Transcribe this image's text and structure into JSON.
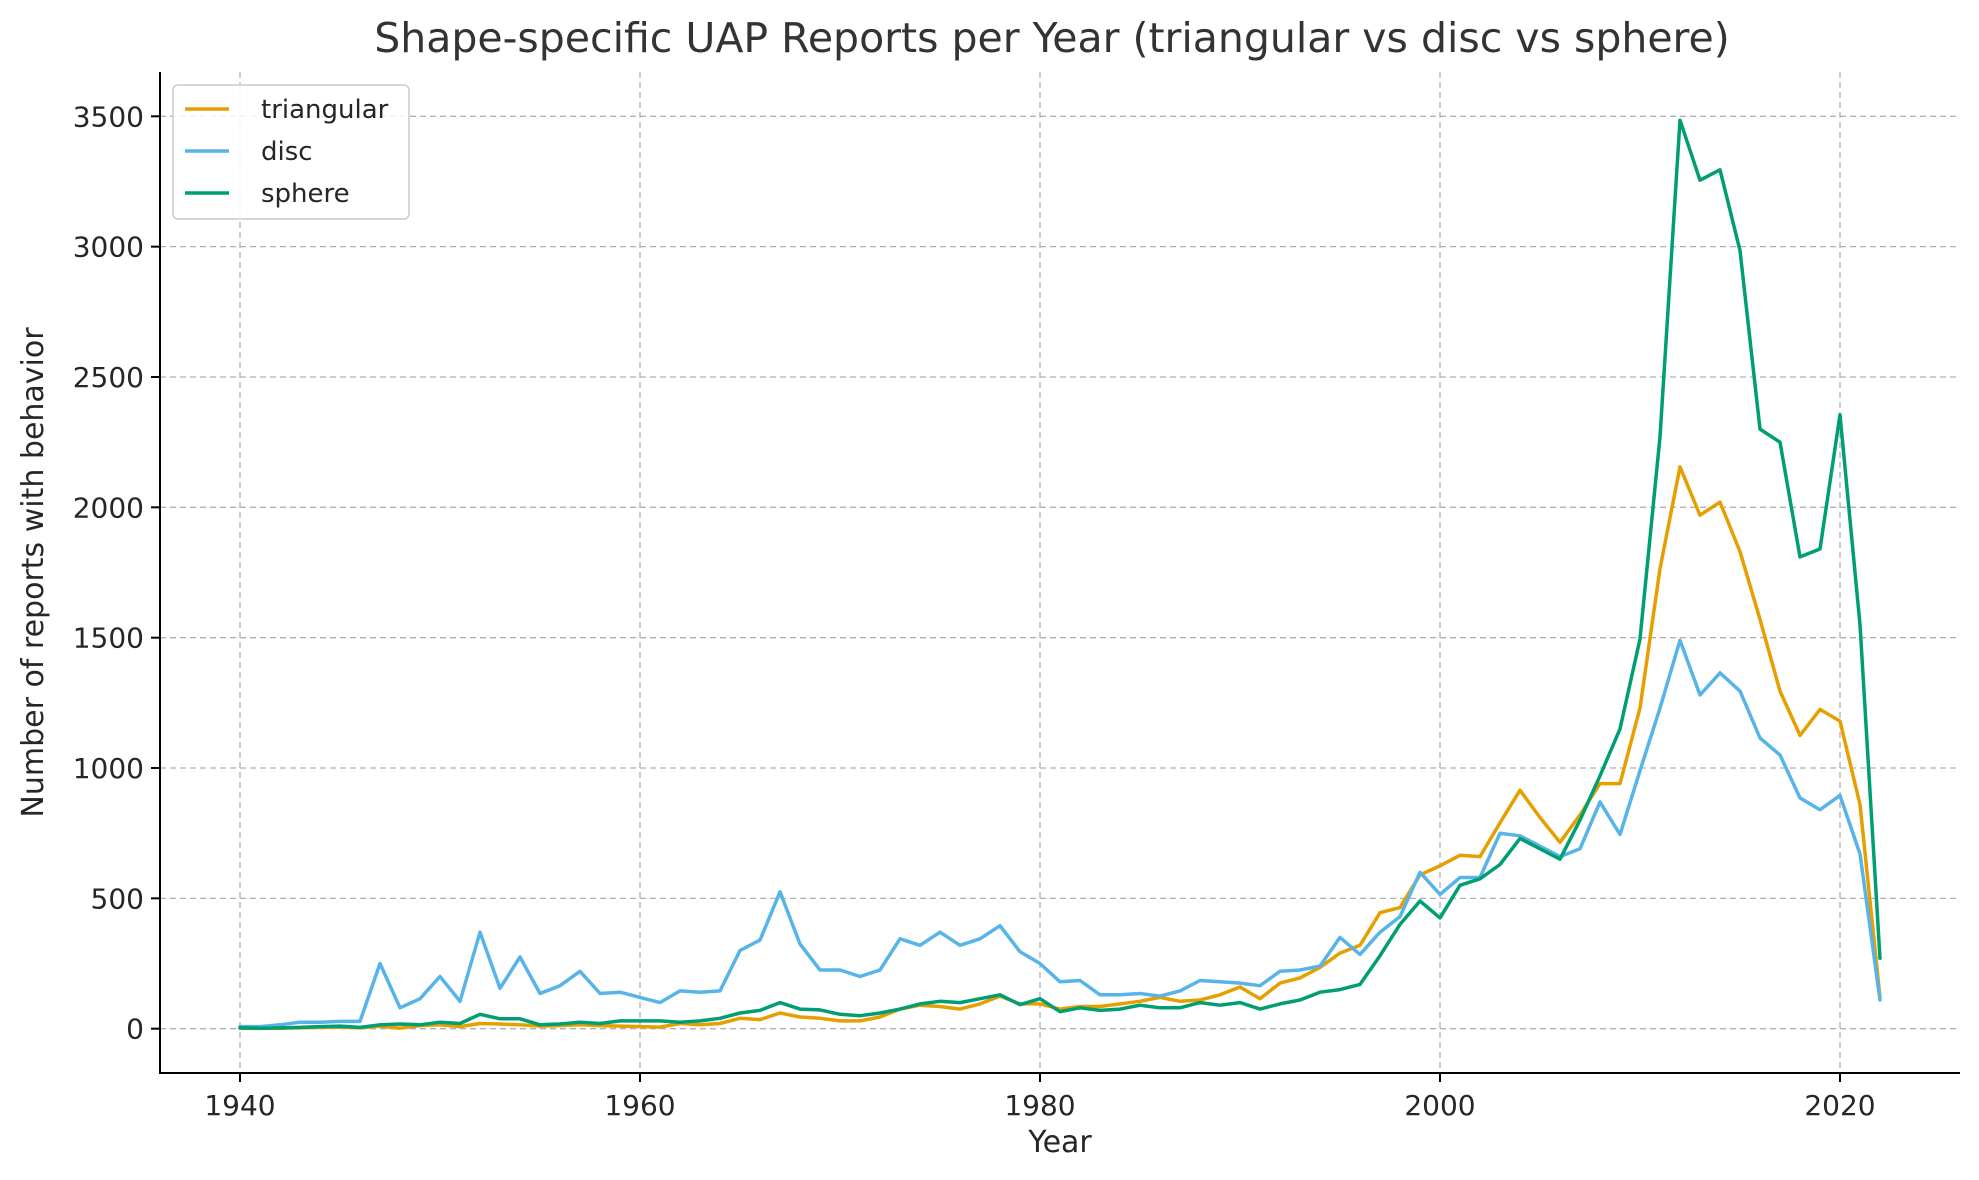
{
  "chart_data": {
    "type": "line",
    "title": "Shape-specific UAP Reports per Year (triangular vs disc vs sphere)",
    "xlabel": "Year",
    "ylabel": "Number of reports with behavior",
    "xlim": [
      1936,
      2026
    ],
    "ylim": [
      -170,
      3670
    ],
    "xticks": [
      "1940",
      "1960",
      "1980",
      "2000",
      "2020"
    ],
    "yticks": [
      "0",
      "500",
      "1000",
      "1500",
      "2000",
      "2500",
      "3000",
      "3500"
    ],
    "grid": true,
    "legend_position": "top-left",
    "x": [
      1940,
      1941,
      1942,
      1943,
      1944,
      1945,
      1946,
      1947,
      1948,
      1949,
      1950,
      1951,
      1952,
      1953,
      1954,
      1955,
      1956,
      1957,
      1958,
      1959,
      1960,
      1961,
      1962,
      1963,
      1964,
      1965,
      1966,
      1967,
      1968,
      1969,
      1970,
      1971,
      1972,
      1973,
      1974,
      1975,
      1976,
      1977,
      1978,
      1979,
      1980,
      1981,
      1982,
      1983,
      1984,
      1985,
      1986,
      1987,
      1988,
      1989,
      1990,
      1991,
      1992,
      1993,
      1994,
      1995,
      1996,
      1997,
      1998,
      1999,
      2000,
      2001,
      2002,
      2003,
      2004,
      2005,
      2006,
      2007,
      2008,
      2009,
      2010,
      2011,
      2012,
      2013,
      2014,
      2015,
      2016,
      2017,
      2018,
      2019,
      2020,
      2021,
      2022
    ],
    "series": [
      {
        "name": "triangular",
        "color": "#E69F00",
        "values": [
          2,
          1,
          2,
          3,
          5,
          6,
          3,
          10,
          2,
          12,
          15,
          8,
          20,
          18,
          15,
          10,
          12,
          15,
          12,
          10,
          8,
          6,
          20,
          15,
          20,
          40,
          35,
          60,
          45,
          40,
          30,
          30,
          45,
          75,
          90,
          85,
          75,
          95,
          125,
          95,
          95,
          75,
          85,
          85,
          95,
          105,
          120,
          105,
          110,
          130,
          160,
          115,
          175,
          195,
          235,
          290,
          320,
          445,
          465,
          590,
          625,
          665,
          660,
          790,
          915,
          810,
          715,
          820,
          940,
          940,
          1230,
          1765,
          2155,
          1970,
          2020,
          1830,
          1570,
          1295,
          1125,
          1225,
          1180,
          860,
          120
        ]
      },
      {
        "name": "disc",
        "color": "#56B4E9",
        "values": [
          8,
          8,
          15,
          25,
          25,
          28,
          28,
          250,
          80,
          115,
          200,
          105,
          370,
          155,
          275,
          135,
          165,
          220,
          135,
          140,
          120,
          100,
          145,
          140,
          145,
          300,
          340,
          525,
          325,
          225,
          225,
          200,
          225,
          345,
          320,
          370,
          320,
          345,
          395,
          295,
          250,
          180,
          185,
          130,
          130,
          135,
          125,
          145,
          185,
          180,
          175,
          165,
          220,
          225,
          240,
          350,
          285,
          370,
          430,
          600,
          515,
          580,
          580,
          750,
          740,
          700,
          660,
          690,
          870,
          745,
          990,
          1230,
          1490,
          1280,
          1365,
          1295,
          1115,
          1050,
          885,
          840,
          895,
          670,
          110
        ]
      },
      {
        "name": "sphere",
        "color": "#009E73",
        "values": [
          3,
          2,
          3,
          5,
          8,
          10,
          5,
          15,
          18,
          15,
          25,
          20,
          55,
          38,
          38,
          15,
          18,
          25,
          20,
          30,
          30,
          30,
          25,
          30,
          40,
          60,
          70,
          100,
          75,
          72,
          55,
          50,
          60,
          75,
          95,
          105,
          100,
          115,
          130,
          92,
          115,
          65,
          80,
          70,
          75,
          90,
          80,
          80,
          100,
          90,
          100,
          75,
          95,
          110,
          140,
          150,
          170,
          280,
          400,
          490,
          425,
          550,
          575,
          630,
          730,
          690,
          650,
          800,
          970,
          1150,
          1495,
          2270,
          3485,
          3255,
          3295,
          2985,
          2300,
          2250,
          1810,
          1840,
          2355,
          1550,
          270
        ]
      }
    ]
  }
}
